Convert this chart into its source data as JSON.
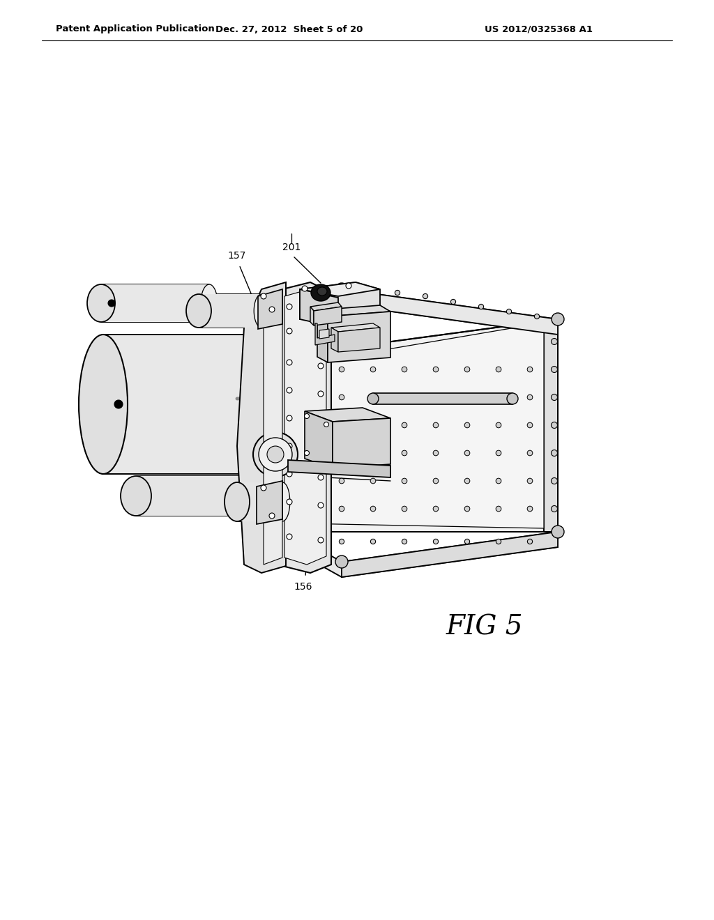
{
  "background_color": "#ffffff",
  "header_left": "Patent Application Publication",
  "header_center": "Dec. 27, 2012  Sheet 5 of 20",
  "header_right": "US 2012/0325368 A1",
  "fig_label": "FIG 5",
  "line_color": "#000000",
  "lw_main": 1.3,
  "lw_thin": 0.8,
  "fill_white": "#ffffff",
  "fill_light": "#efefef",
  "fill_mid": "#e0e0e0",
  "fill_dark": "#c8c8c8",
  "fill_darker": "#b8b8b8"
}
